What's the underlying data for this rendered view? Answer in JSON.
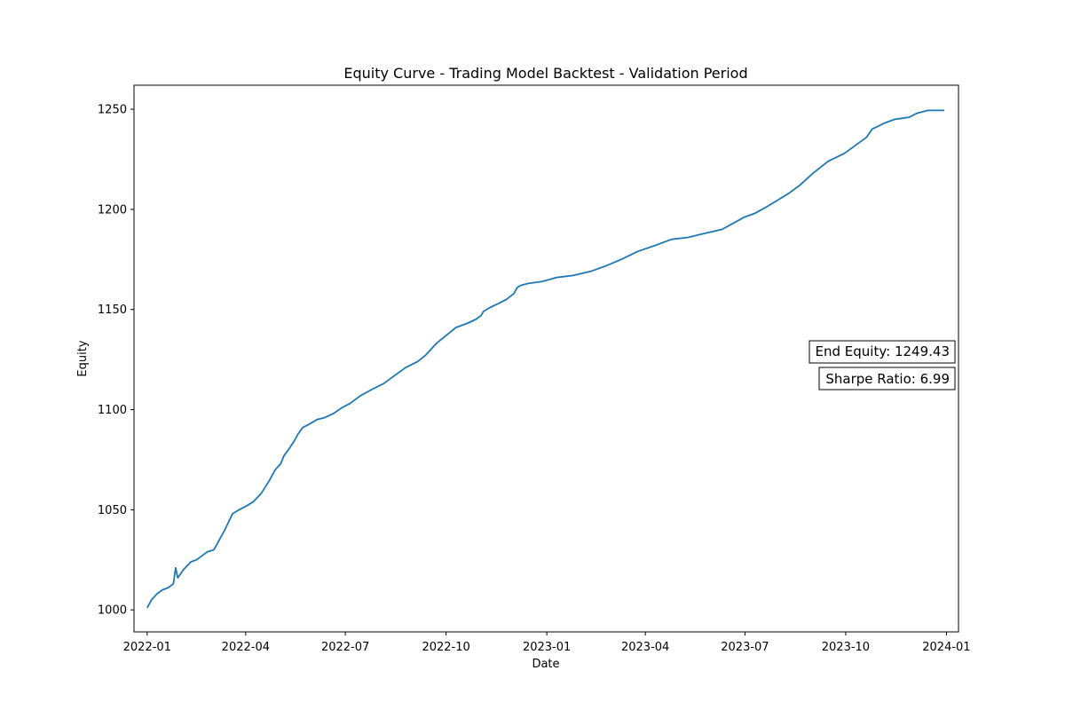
{
  "chart_data": {
    "type": "line",
    "title": "Equity Curve - Trading Model Backtest - Validation Period",
    "xlabel": "Date",
    "ylabel": "Equity",
    "xlim": [
      "2021-12-20",
      "2024-01-12"
    ],
    "ylim": [
      989,
      1262
    ],
    "x_ticks": [
      "2022-01",
      "2022-04",
      "2022-07",
      "2022-10",
      "2023-01",
      "2023-04",
      "2023-07",
      "2023-10",
      "2024-01"
    ],
    "y_ticks": [
      1000,
      1050,
      1100,
      1150,
      1200,
      1250
    ],
    "grid": false,
    "line_color": "#1f77b4",
    "series": [
      {
        "x": [
          "2022-01-01",
          "2022-01-05",
          "2022-01-10",
          "2022-01-15",
          "2022-01-20",
          "2022-01-25",
          "2022-01-27",
          "2022-01-29",
          "2022-02-03",
          "2022-02-10",
          "2022-02-15",
          "2022-02-20",
          "2022-02-25",
          "2022-03-03",
          "2022-03-08",
          "2022-03-13",
          "2022-03-20",
          "2022-03-26",
          "2022-04-02",
          "2022-04-08",
          "2022-04-15",
          "2022-04-22",
          "2022-04-28",
          "2022-05-03",
          "2022-05-06",
          "2022-05-10",
          "2022-05-15",
          "2022-05-19",
          "2022-05-23",
          "2022-05-30",
          "2022-06-05",
          "2022-06-12",
          "2022-06-20",
          "2022-06-28",
          "2022-07-05",
          "2022-07-15",
          "2022-07-25",
          "2022-08-05",
          "2022-08-15",
          "2022-08-25",
          "2022-09-05",
          "2022-09-12",
          "2022-09-22",
          "2022-10-01",
          "2022-10-10",
          "2022-10-20",
          "2022-10-28",
          "2022-11-02",
          "2022-11-04",
          "2022-11-10",
          "2022-11-18",
          "2022-11-25",
          "2022-12-02",
          "2022-12-05",
          "2022-12-08",
          "2022-12-15",
          "2022-12-28",
          "2023-01-10",
          "2023-01-25",
          "2023-02-10",
          "2023-02-25",
          "2023-03-10",
          "2023-03-25",
          "2023-04-10",
          "2023-04-25",
          "2023-05-10",
          "2023-05-25",
          "2023-06-10",
          "2023-06-20",
          "2023-06-30",
          "2023-07-10",
          "2023-07-20",
          "2023-08-01",
          "2023-08-10",
          "2023-08-20",
          "2023-09-01",
          "2023-09-15",
          "2023-09-30",
          "2023-10-10",
          "2023-10-20",
          "2023-10-25",
          "2023-11-05",
          "2023-11-15",
          "2023-11-28",
          "2023-12-05",
          "2023-12-15",
          "2023-12-30"
        ],
        "y": [
          1001,
          1005,
          1008,
          1010,
          1011,
          1013,
          1021,
          1016,
          1020,
          1024,
          1025,
          1027,
          1029,
          1030,
          1035,
          1040,
          1048,
          1050,
          1052,
          1054,
          1058,
          1064,
          1070,
          1073,
          1077,
          1080,
          1084,
          1088,
          1091,
          1093,
          1095,
          1096,
          1098,
          1101,
          1103,
          1107,
          1110,
          1113,
          1117,
          1121,
          1124,
          1127,
          1133,
          1137,
          1141,
          1143,
          1145,
          1147,
          1149,
          1151,
          1153,
          1155,
          1158,
          1161,
          1162,
          1163,
          1164,
          1166,
          1167,
          1169,
          1172,
          1175,
          1179,
          1182,
          1185,
          1186,
          1188,
          1190,
          1193,
          1196,
          1198,
          1201,
          1205,
          1208,
          1212,
          1218,
          1224,
          1228,
          1232,
          1236,
          1240,
          1243,
          1245,
          1246,
          1248,
          1249.4,
          1249.4
        ]
      }
    ],
    "annotations": [
      {
        "text": "End Equity: 1249.43"
      },
      {
        "text": "Sharpe Ratio: 6.99"
      }
    ]
  }
}
